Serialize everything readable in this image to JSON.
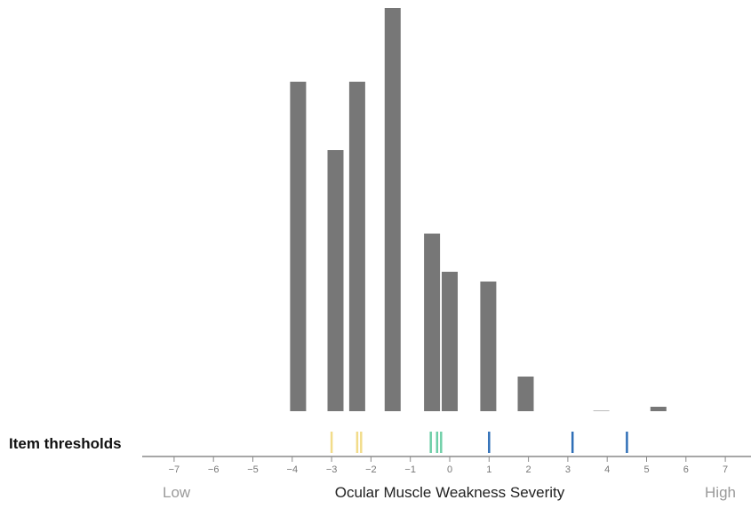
{
  "chart_data": {
    "type": "bar",
    "title": "",
    "xlabel": "Ocular Muscle Weakness Severity",
    "ylabel": "",
    "low_label": "Low",
    "high_label": "High",
    "thresholds_label": "Item thresholds",
    "xlim": [
      -7.5,
      7.5
    ],
    "x_ticks": [
      -7,
      -6,
      -5,
      -4,
      -3,
      -2,
      -1,
      0,
      1,
      2,
      3,
      4,
      5,
      6,
      7
    ],
    "ylim": [
      0,
      454
    ],
    "grid": false,
    "bar_color": "#777777",
    "bars": [
      {
        "x": -3.85,
        "value": 371
      },
      {
        "x": -2.9,
        "value": 294
      },
      {
        "x": -2.35,
        "value": 371
      },
      {
        "x": -1.45,
        "value": 454
      },
      {
        "x": -0.45,
        "value": 200
      },
      {
        "x": 0.0,
        "value": 157
      },
      {
        "x": 0.98,
        "value": 146
      },
      {
        "x": 1.93,
        "value": 39
      },
      {
        "x": 3.85,
        "value": 1
      },
      {
        "x": 5.3,
        "value": 5
      }
    ],
    "thresholds": [
      {
        "x": -3.0,
        "color": "#f2dc8a"
      },
      {
        "x": -2.35,
        "color": "#f2dc8a"
      },
      {
        "x": -2.25,
        "color": "#f2dc8a"
      },
      {
        "x": -0.48,
        "color": "#6fcfa8"
      },
      {
        "x": -0.32,
        "color": "#6fcfa8"
      },
      {
        "x": -0.22,
        "color": "#6fcfa8"
      },
      {
        "x": 1.0,
        "color": "#2f6fb7"
      },
      {
        "x": 3.12,
        "color": "#2f6fb7"
      },
      {
        "x": 4.5,
        "color": "#2f6fb7"
      }
    ]
  }
}
